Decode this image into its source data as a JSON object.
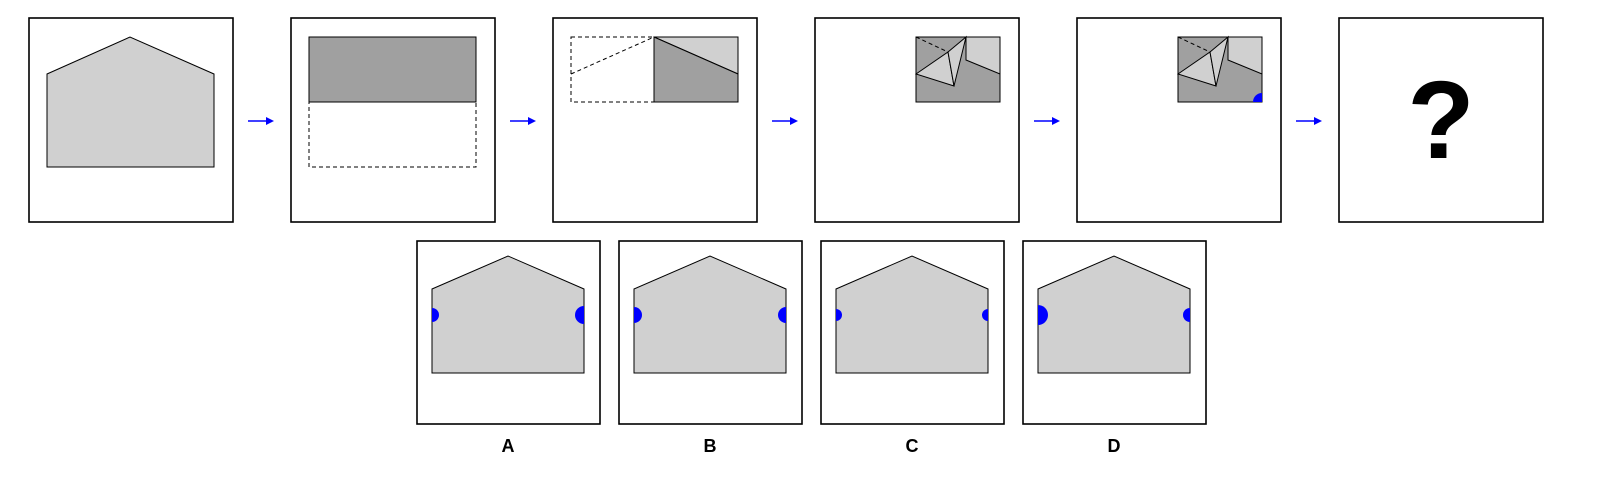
{
  "colors": {
    "paper_light": "#d0d0d0",
    "paper_dark": "#a0a0a0",
    "arrow": "#0000ff",
    "hole": "#0000ff",
    "outline": "#000000"
  },
  "sequence": {
    "steps": [
      {
        "name": "house-shape-unfolded"
      },
      {
        "name": "fold-bottom-half-up"
      },
      {
        "name": "fold-left-half-right"
      },
      {
        "name": "fold-corner-flaps"
      },
      {
        "name": "punch-hole-bottom-right"
      }
    ],
    "arrow_count": 5,
    "question": "?"
  },
  "options": [
    {
      "label": "A"
    },
    {
      "label": "B"
    },
    {
      "label": "C"
    },
    {
      "label": "D"
    }
  ]
}
